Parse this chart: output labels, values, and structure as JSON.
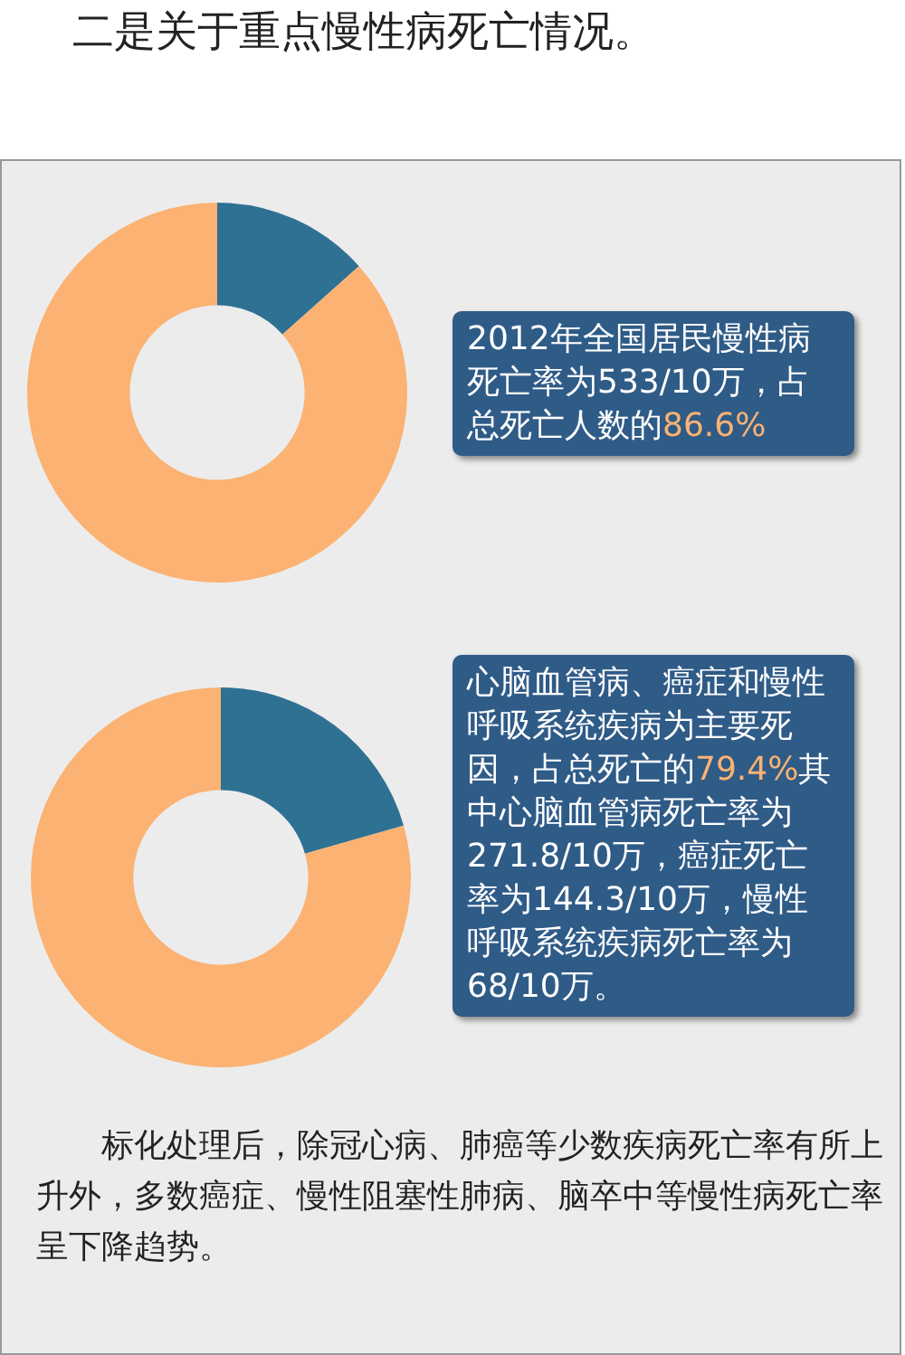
{
  "chart_data": [
    {
      "type": "donut",
      "title": "二是关于重点慢性病死亡情况。",
      "categories": [
        null,
        null
      ],
      "values": [
        13.4,
        86.6
      ],
      "colors": [
        "#2f7193",
        "#fbb272"
      ],
      "legend": false,
      "annotations": [
        "2012年全国居民慢性病死亡率为533/10万，占总死亡人数的86.6%"
      ]
    },
    {
      "type": "donut",
      "categories": [
        null,
        null
      ],
      "values": [
        20.6,
        79.4
      ],
      "colors": [
        "#2f7193",
        "#fbb272"
      ],
      "legend": false,
      "annotations": [
        "心脑血管病、癌症和慢性呼吸系统疾病为主要死因，占总死亡的79.4%其中心脑血管病死亡率为271.8/10万，癌症死亡率为144.3/10万，慢性呼吸系统疾病死亡率为68/10万。",
        "标化处理后，除冠心病、肺癌等少数疾病死亡率有所上升外，多数癌症、慢性阻塞性肺病、脑卒中等慢性病死亡率呈下降趋势。"
      ]
    }
  ]
}
